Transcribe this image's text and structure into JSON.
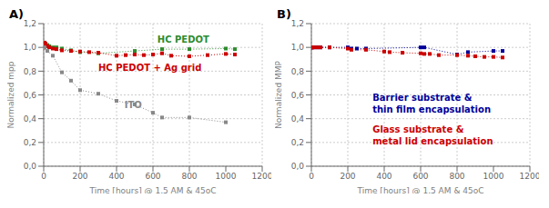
{
  "chart_data": [
    {
      "type": "line",
      "title": "A)",
      "x_label": "Time [hours] @ 1,5 AM & 45oC",
      "y_label": "Normalized mpp",
      "xlim": [
        0,
        1200
      ],
      "ylim": [
        0.0,
        1.2
      ],
      "xticks": [
        0,
        200,
        400,
        600,
        800,
        1000,
        1200
      ],
      "yticks": [
        {
          "value": 0.0,
          "label": "0,0"
        },
        {
          "value": 0.2,
          "label": "0,2"
        },
        {
          "value": 0.4,
          "label": "0,4"
        },
        {
          "value": 0.6,
          "label": "0,6"
        },
        {
          "value": 0.8,
          "label": "0,8"
        },
        {
          "value": 1.0,
          "label": "1,0"
        },
        {
          "value": 1.2,
          "label": "1,2"
        }
      ],
      "grid": true,
      "marker": "square",
      "line_style": "dotted",
      "series": [
        {
          "name": "HC PEDOT",
          "color": "#2e8b2e",
          "x": [
            0,
            5,
            10,
            20,
            30,
            50,
            70,
            100,
            150,
            200,
            300,
            500,
            650,
            800,
            1000,
            1050
          ],
          "values": [
            1.0,
            1.04,
            1.03,
            1.02,
            1.01,
            1.0,
            1.0,
            0.99,
            0.975,
            0.96,
            0.95,
            0.97,
            0.985,
            0.985,
            0.99,
            0.985
          ]
        },
        {
          "name": "HC PEDOT + Ag grid",
          "color": "#cc0000",
          "x": [
            0,
            5,
            10,
            20,
            30,
            50,
            70,
            100,
            150,
            200,
            250,
            300,
            400,
            450,
            500,
            550,
            600,
            650,
            700,
            800,
            900,
            1000,
            1050
          ],
          "values": [
            1.0,
            1.04,
            1.03,
            1.01,
            1.0,
            0.99,
            0.985,
            0.975,
            0.97,
            0.965,
            0.96,
            0.955,
            0.93,
            0.935,
            0.94,
            0.935,
            0.94,
            0.95,
            0.93,
            0.925,
            0.935,
            0.945,
            0.94
          ]
        },
        {
          "name": "ITO",
          "color": "#888888",
          "x": [
            0,
            5,
            20,
            50,
            100,
            150,
            200,
            300,
            400,
            500,
            600,
            650,
            800,
            1000
          ],
          "values": [
            1.0,
            1.0,
            0.97,
            0.93,
            0.79,
            0.72,
            0.64,
            0.61,
            0.55,
            0.52,
            0.45,
            0.41,
            0.41,
            0.37
          ]
        }
      ]
    },
    {
      "type": "line",
      "title": "B)",
      "x_label": "Time [hours] @ 1,5 AM & 45oC",
      "y_label": "Normalized MMP",
      "xlim": [
        0,
        1200
      ],
      "ylim": [
        0.0,
        1.2
      ],
      "xticks": [
        0,
        200,
        400,
        600,
        800,
        1000,
        1200
      ],
      "yticks": [
        {
          "value": 0.0,
          "label": "0,0"
        },
        {
          "value": 0.2,
          "label": "0,2"
        },
        {
          "value": 0.4,
          "label": "0,4"
        },
        {
          "value": 0.6,
          "label": "0,6"
        },
        {
          "value": 0.8,
          "label": "0,8"
        },
        {
          "value": 1.0,
          "label": "1,0"
        },
        {
          "value": 1.2,
          "label": "1,2"
        }
      ],
      "grid": true,
      "marker": "square",
      "line_style": "dotted",
      "series": [
        {
          "name": "Barrier substrate &\nthin film encapsulation",
          "color": "#000099",
          "x": [
            0,
            5,
            10,
            30,
            50,
            100,
            200,
            220,
            250,
            300,
            600,
            620,
            800,
            860,
            1000,
            1050
          ],
          "values": [
            1.0,
            1.0,
            1.0,
            1.0,
            1.0,
            1.0,
            1.0,
            0.99,
            0.99,
            0.99,
            1.0,
            1.0,
            0.94,
            0.96,
            0.97,
            0.97
          ]
        },
        {
          "name": "Glass substrate &\nmetal lid encapsulation",
          "color": "#cc0000",
          "x": [
            0,
            5,
            10,
            30,
            50,
            100,
            200,
            220,
            300,
            400,
            430,
            500,
            600,
            620,
            650,
            700,
            800,
            860,
            900,
            950,
            1000,
            1050
          ],
          "values": [
            1.0,
            1.0,
            1.0,
            1.0,
            1.0,
            1.0,
            0.99,
            0.98,
            0.98,
            0.965,
            0.96,
            0.955,
            0.95,
            0.945,
            0.945,
            0.935,
            0.935,
            0.93,
            0.925,
            0.92,
            0.92,
            0.915
          ]
        }
      ]
    }
  ]
}
